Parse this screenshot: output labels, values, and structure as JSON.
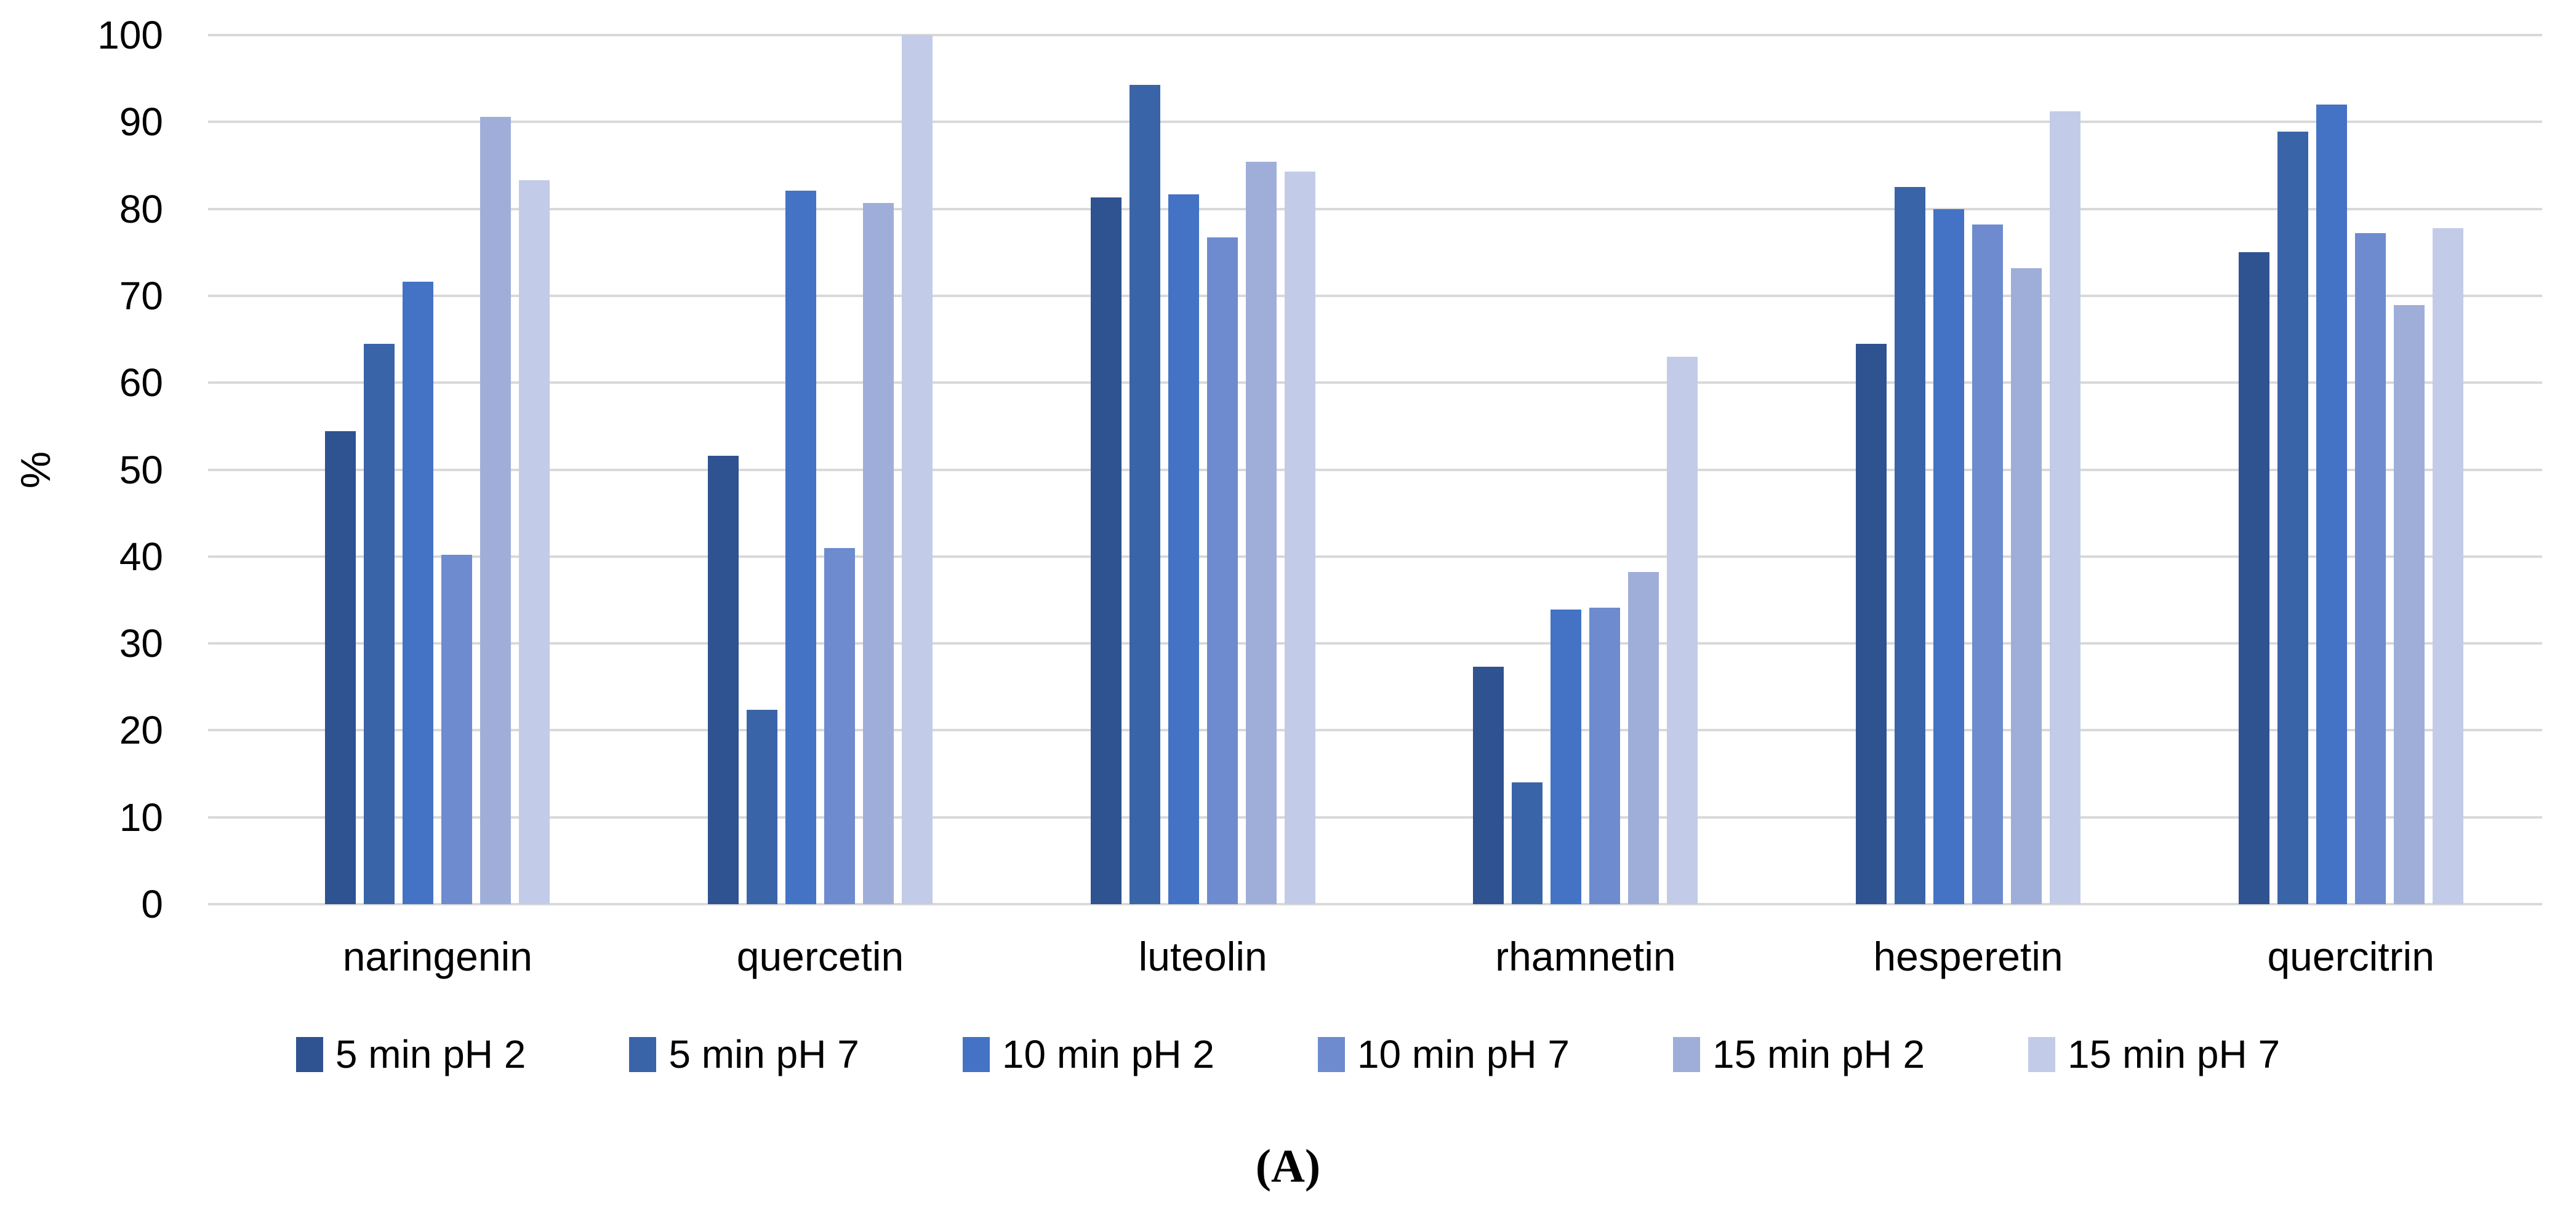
{
  "figure": {
    "caption": "(A)"
  },
  "chart_data": {
    "type": "bar",
    "title": "",
    "xlabel": "",
    "ylabel": "%",
    "ylim": [
      0,
      100
    ],
    "yticks": [
      0,
      10,
      20,
      30,
      40,
      50,
      60,
      70,
      80,
      90,
      100
    ],
    "grid": "horizontal",
    "gridline_color": "#D9D9D9",
    "legend_position": "bottom",
    "categories": [
      "naringenin",
      "quercetin",
      "luteolin",
      "rhamnetin",
      "hesperetin",
      "quercitrin"
    ],
    "series": [
      {
        "name": "5 min pH 2",
        "color": "#2F5291",
        "values": [
          54.4,
          51.6,
          81.3,
          27.3,
          64.5,
          75.0
        ]
      },
      {
        "name": "5 min pH 7",
        "color": "#3A64A8",
        "values": [
          64.5,
          22.4,
          94.3,
          14.0,
          82.5,
          88.9
        ]
      },
      {
        "name": "10 min pH 2",
        "color": "#4472C4",
        "values": [
          71.6,
          82.1,
          81.7,
          33.9,
          80.0,
          92.0
        ]
      },
      {
        "name": "10 min pH 7",
        "color": "#6D8BCE",
        "values": [
          40.2,
          41.0,
          76.7,
          34.1,
          78.2,
          77.2
        ]
      },
      {
        "name": "15 min pH 2",
        "color": "#9FAED9",
        "values": [
          90.6,
          80.7,
          85.4,
          38.2,
          73.2,
          68.9
        ]
      },
      {
        "name": "15 min pH 7",
        "color": "#C2CCE8",
        "values": [
          83.3,
          100.0,
          84.3,
          63.0,
          91.2,
          77.8
        ]
      }
    ]
  }
}
